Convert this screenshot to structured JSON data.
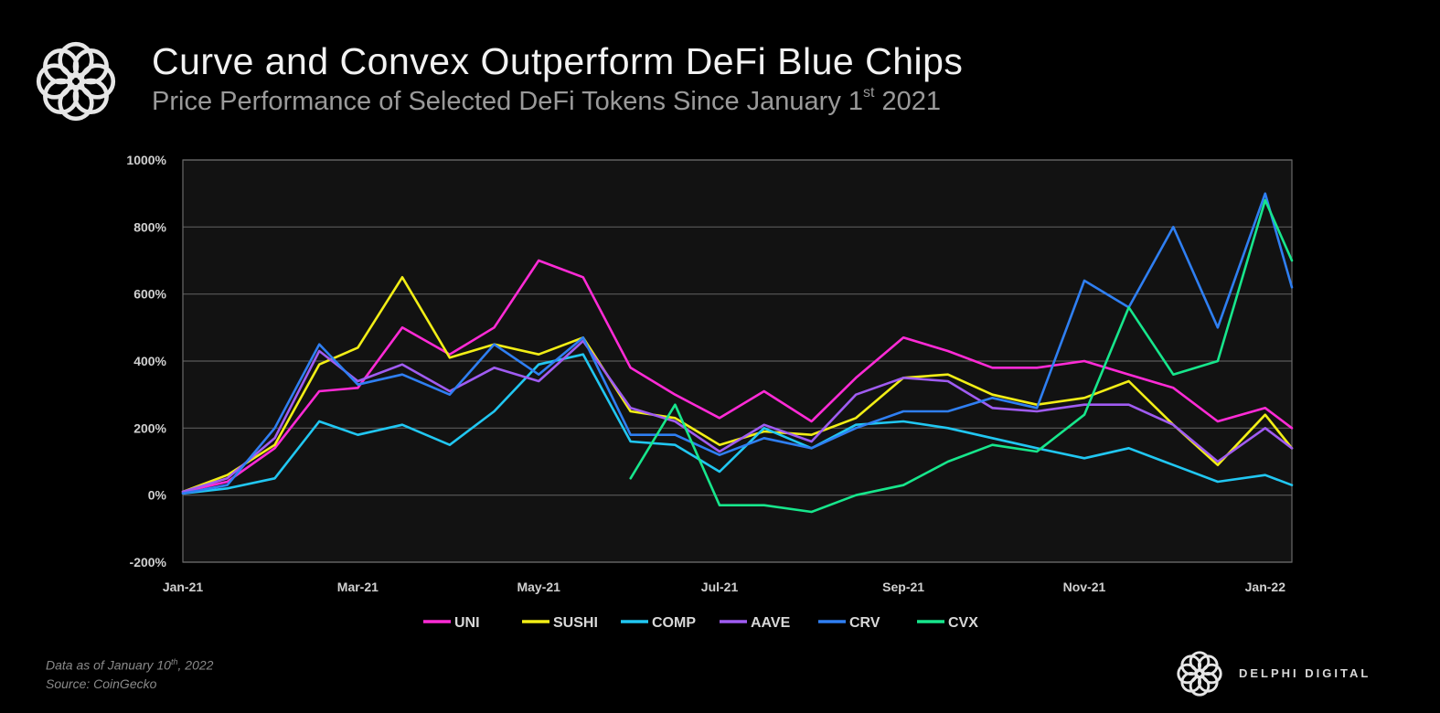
{
  "header": {
    "title": "Curve and Convex Outperform DeFi Blue Chips",
    "subtitle_main": "Price Performance of Selected DeFi Tokens Since January 1",
    "subtitle_sup": "st",
    "subtitle_end": " 2021"
  },
  "footnote": {
    "line1_pre": "Data as of January 10",
    "line1_sup": "th",
    "line1_post": ", 2022",
    "line2": "Source: CoinGecko"
  },
  "brand": {
    "name": "DELPHI DIGITAL"
  },
  "icons": {
    "logo": "delphi-digital-logo-icon"
  },
  "chart_data": {
    "type": "line",
    "title": "Curve and Convex Outperform DeFi Blue Chips",
    "subtitle": "Price Performance of Selected DeFi Tokens Since January 1st 2021",
    "x": [
      "2021-01-01",
      "2021-01-16",
      "2021-02-01",
      "2021-02-16",
      "2021-03-01",
      "2021-03-16",
      "2021-04-01",
      "2021-04-16",
      "2021-05-01",
      "2021-05-16",
      "2021-06-01",
      "2021-06-16",
      "2021-07-01",
      "2021-07-16",
      "2021-08-01",
      "2021-08-16",
      "2021-09-01",
      "2021-09-16",
      "2021-10-01",
      "2021-10-16",
      "2021-11-01",
      "2021-11-16",
      "2021-12-01",
      "2021-12-16",
      "2022-01-01",
      "2022-01-10"
    ],
    "x_ticks": [
      "Jan-21",
      "Mar-21",
      "May-21",
      "Jul-21",
      "Sep-21",
      "Nov-21",
      "Jan-22"
    ],
    "x_tick_dates": [
      "2021-01-01",
      "2021-03-01",
      "2021-05-01",
      "2021-07-01",
      "2021-09-01",
      "2021-11-01",
      "2022-01-01"
    ],
    "y_ticks": [
      "-200%",
      "0%",
      "200%",
      "400%",
      "600%",
      "800%",
      "1000%"
    ],
    "ylim": [
      -200,
      1000
    ],
    "grid": true,
    "legend": "bottom",
    "series": [
      {
        "name": "UNI",
        "color": "#ff2bd6",
        "values": [
          10,
          40,
          140,
          310,
          320,
          500,
          420,
          500,
          700,
          650,
          380,
          300,
          230,
          310,
          220,
          350,
          470,
          430,
          380,
          380,
          400,
          360,
          320,
          220,
          260,
          200
        ]
      },
      {
        "name": "SUSHI",
        "color": "#f2ee16",
        "values": [
          10,
          60,
          150,
          390,
          440,
          650,
          410,
          450,
          420,
          470,
          250,
          230,
          150,
          190,
          180,
          230,
          350,
          360,
          300,
          270,
          290,
          340,
          210,
          90,
          240,
          140
        ]
      },
      {
        "name": "COMP",
        "color": "#21c7f2",
        "values": [
          5,
          20,
          50,
          220,
          180,
          210,
          150,
          250,
          390,
          420,
          160,
          150,
          70,
          200,
          140,
          210,
          220,
          200,
          170,
          140,
          110,
          140,
          90,
          40,
          60,
          30
        ]
      },
      {
        "name": "AAVE",
        "color": "#a05cf2",
        "values": [
          10,
          50,
          170,
          430,
          340,
          390,
          310,
          380,
          340,
          460,
          260,
          220,
          130,
          210,
          160,
          300,
          350,
          340,
          260,
          250,
          270,
          270,
          210,
          100,
          200,
          140
        ]
      },
      {
        "name": "CRV",
        "color": "#2f7ff2",
        "values": [
          5,
          30,
          200,
          450,
          330,
          360,
          300,
          450,
          360,
          470,
          180,
          180,
          120,
          170,
          140,
          200,
          250,
          250,
          290,
          260,
          640,
          560,
          800,
          500,
          900,
          620
        ]
      },
      {
        "name": "CVX",
        "color": "#17e68c",
        "values": [
          null,
          null,
          null,
          null,
          null,
          null,
          null,
          null,
          null,
          null,
          50,
          270,
          -30,
          -30,
          -50,
          0,
          30,
          100,
          150,
          130,
          240,
          560,
          360,
          400,
          880,
          700
        ]
      }
    ]
  }
}
